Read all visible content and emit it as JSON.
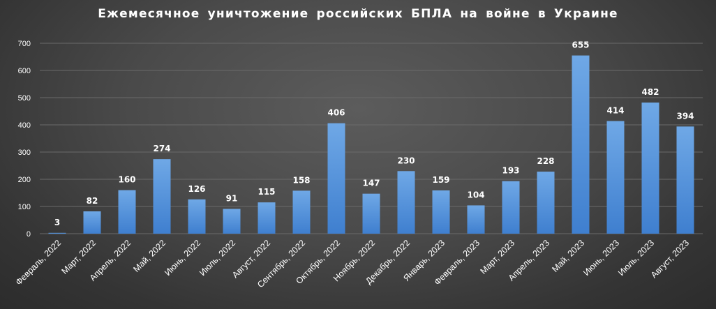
{
  "chart_data": {
    "type": "bar",
    "title": "Ежемесячное уничтожение российских БПЛА на войне в Украине",
    "xlabel": "",
    "ylabel": "",
    "categories": [
      "Февраль, 2022",
      "Март, 2022",
      "Апрель, 2022",
      "Май, 2022",
      "Июнь, 2022",
      "Июль, 2022",
      "Август, 2022",
      "Сентябрь, 2022",
      "Октябрь, 2022",
      "Ноябрь, 2022",
      "Декабрь, 2022",
      "Январь, 2023",
      "Февраль, 2023",
      "Март, 2023",
      "Апрель, 2023",
      "Май, 2023",
      "Июнь, 2023",
      "Июль, 2023",
      "Август, 2023"
    ],
    "values": [
      3,
      82,
      160,
      274,
      126,
      91,
      115,
      158,
      406,
      147,
      230,
      159,
      104,
      193,
      228,
      655,
      414,
      482,
      394
    ],
    "ylim": [
      0,
      700
    ],
    "yticks": [
      0,
      100,
      200,
      300,
      400,
      500,
      600,
      700
    ],
    "grid": true,
    "legend": "none",
    "colors": {
      "bar_top": "#6fa8e6",
      "bar_bottom": "#3f7fcf",
      "grid": "#6a6a6a",
      "text": "#ffffff"
    }
  }
}
